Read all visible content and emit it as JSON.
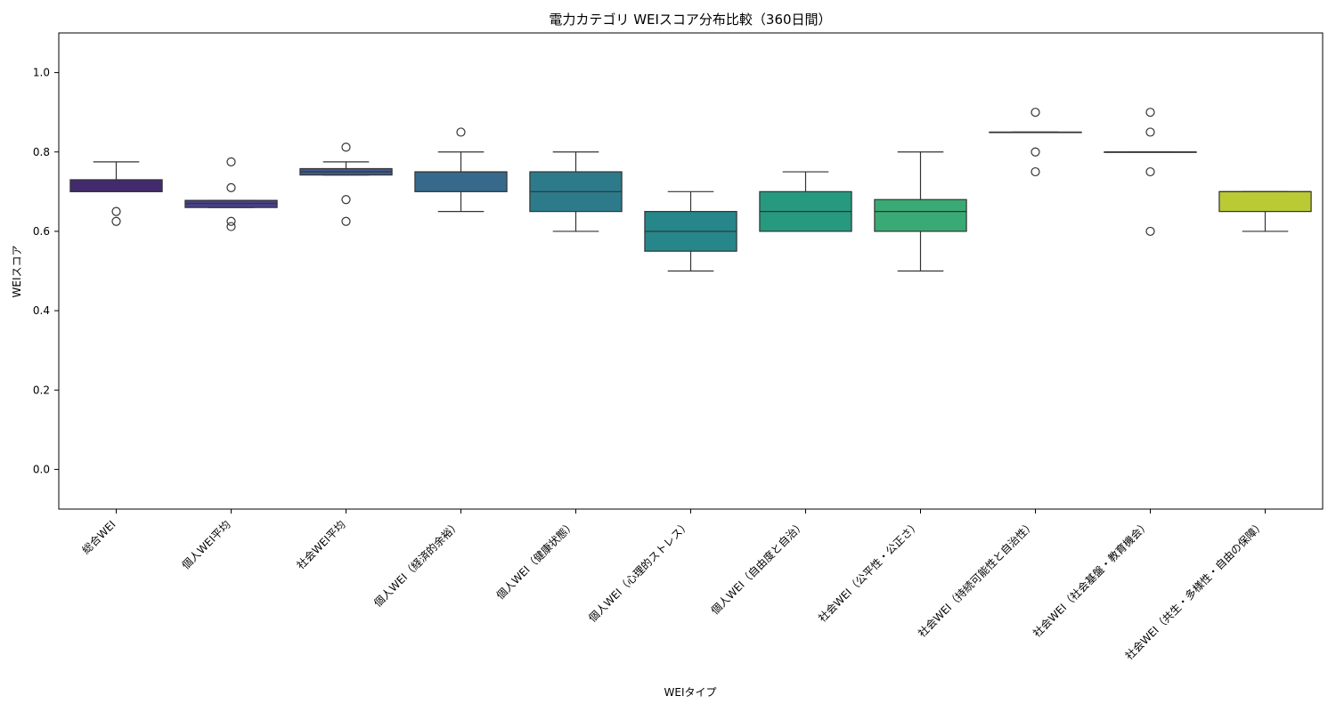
{
  "chart_data": {
    "type": "box",
    "title": "電力カテゴリ WEIスコア分布比較（360日間）",
    "xlabel": "WEIタイプ",
    "ylabel": "WEIスコア",
    "ylim": [
      -0.1,
      1.1
    ],
    "yticks": [
      0.0,
      0.2,
      0.4,
      0.6,
      0.8,
      1.0
    ],
    "ytick_labels": [
      "0.0",
      "0.2",
      "0.4",
      "0.6",
      "0.8",
      "1.0"
    ],
    "grid": false,
    "categories": [
      "総合WEI",
      "個人WEI平均",
      "社会WEI平均",
      "個人WEI（経済的余裕）",
      "個人WEI（健康状態）",
      "個人WEI（心理的ストレス）",
      "個人WEI（自由度と自治）",
      "社会WEI（公平性・公正さ）",
      "社会WEI（持続可能性と自治性）",
      "社会WEI（社会基盤・教育機会）",
      "社会WEI（共生・多様性・自由の保障）"
    ],
    "boxes": [
      {
        "whisker_low": 0.7,
        "q1": 0.7,
        "median": 0.7,
        "q3": 0.73,
        "whisker_high": 0.775,
        "outliers": [
          0.65,
          0.625
        ],
        "color": "#432a6f"
      },
      {
        "whisker_low": 0.66,
        "q1": 0.66,
        "median": 0.67,
        "q3": 0.678,
        "whisker_high": 0.678,
        "outliers": [
          0.775,
          0.71,
          0.625,
          0.612
        ],
        "color": "#47418b"
      },
      {
        "whisker_low": 0.742,
        "q1": 0.742,
        "median": 0.75,
        "q3": 0.758,
        "whisker_high": 0.775,
        "outliers": [
          0.812,
          0.68,
          0.625
        ],
        "color": "#3e5b8d"
      },
      {
        "whisker_low": 0.65,
        "q1": 0.7,
        "median": 0.75,
        "q3": 0.75,
        "whisker_high": 0.8,
        "outliers": [
          0.85
        ],
        "color": "#37698c"
      },
      {
        "whisker_low": 0.6,
        "q1": 0.65,
        "median": 0.7,
        "q3": 0.75,
        "whisker_high": 0.8,
        "outliers": [],
        "color": "#2d7a8a"
      },
      {
        "whisker_low": 0.5,
        "q1": 0.55,
        "median": 0.6,
        "q3": 0.65,
        "whisker_high": 0.7,
        "outliers": [],
        "color": "#26868a"
      },
      {
        "whisker_low": 0.6,
        "q1": 0.6,
        "median": 0.65,
        "q3": 0.7,
        "whisker_high": 0.75,
        "outliers": [],
        "color": "#27997f"
      },
      {
        "whisker_low": 0.5,
        "q1": 0.6,
        "median": 0.65,
        "q3": 0.68,
        "whisker_high": 0.8,
        "outliers": [],
        "color": "#3aaa74"
      },
      {
        "whisker_low": 0.85,
        "q1": 0.85,
        "median": 0.85,
        "q3": 0.85,
        "whisker_high": 0.85,
        "outliers": [
          0.9,
          0.8,
          0.75
        ],
        "color": "#62bf5a"
      },
      {
        "whisker_low": 0.8,
        "q1": 0.8,
        "median": 0.8,
        "q3": 0.8,
        "whisker_high": 0.8,
        "outliers": [
          0.9,
          0.85,
          0.75,
          0.6
        ],
        "color": "#96cf3d"
      },
      {
        "whisker_low": 0.6,
        "q1": 0.65,
        "median": 0.7,
        "q3": 0.7,
        "whisker_high": 0.7,
        "outliers": [],
        "color": "#b9ca35"
      }
    ]
  }
}
